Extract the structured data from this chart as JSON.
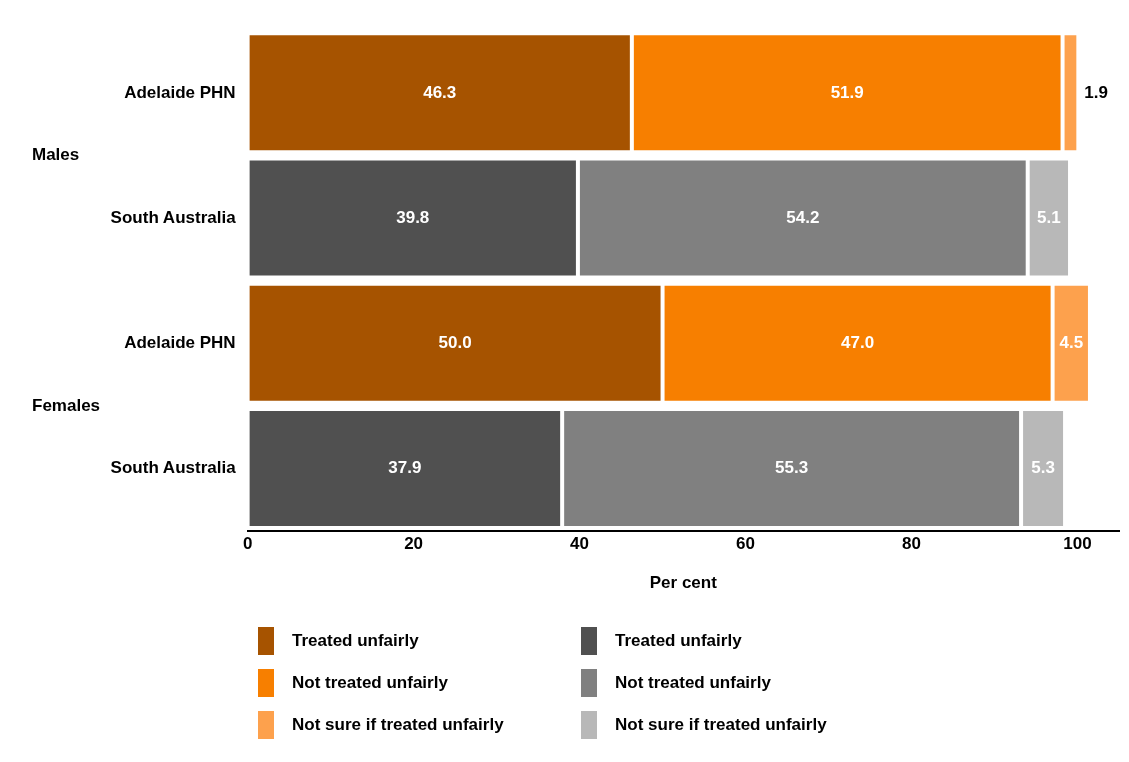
{
  "chart_data": {
    "type": "bar",
    "orientation": "horizontal",
    "stacked": true,
    "xlabel": "Per cent",
    "categories": [
      "Adelaide PHN",
      "South Australia",
      "Adelaide PHN",
      "South Australia"
    ],
    "xlim": [
      0,
      105
    ],
    "xticks": [
      0,
      20,
      40,
      60,
      80,
      100
    ],
    "grid": false,
    "legend": "bottom",
    "annotations": [
      "Males",
      "Females"
    ],
    "series": [
      {
        "name": "Treated unfairly",
        "color": "#a65300",
        "values": [
          46.3,
          null,
          50.0,
          null
        ],
        "value_labels": [
          "46.3",
          null,
          "50.0",
          null
        ]
      },
      {
        "name": "Not treated unfairly",
        "color": "#f77f00",
        "values": [
          51.9,
          null,
          47.0,
          null
        ],
        "value_labels": [
          "51.9",
          null,
          "47.0",
          null
        ]
      },
      {
        "name": "Not sure if treated unfairly",
        "color": "#fda14d",
        "values": [
          1.9,
          null,
          4.5,
          null
        ],
        "value_labels": [
          "1.9",
          null,
          "4.5",
          null
        ]
      },
      {
        "name": "Treated unfairly",
        "color": "#505050",
        "values": [
          null,
          39.8,
          null,
          37.9
        ],
        "value_labels": [
          null,
          "39.8",
          null,
          "37.9"
        ]
      },
      {
        "name": "Not treated unfairly",
        "color": "#808080",
        "values": [
          null,
          54.2,
          null,
          55.3
        ],
        "value_labels": [
          null,
          "54.2",
          null,
          "55.3"
        ]
      },
      {
        "name": "Not sure if treated unfairly",
        "color": "#b8b8b8",
        "values": [
          null,
          5.1,
          null,
          5.3
        ],
        "value_labels": [
          null,
          "5.1",
          null,
          "5.3"
        ]
      }
    ]
  }
}
